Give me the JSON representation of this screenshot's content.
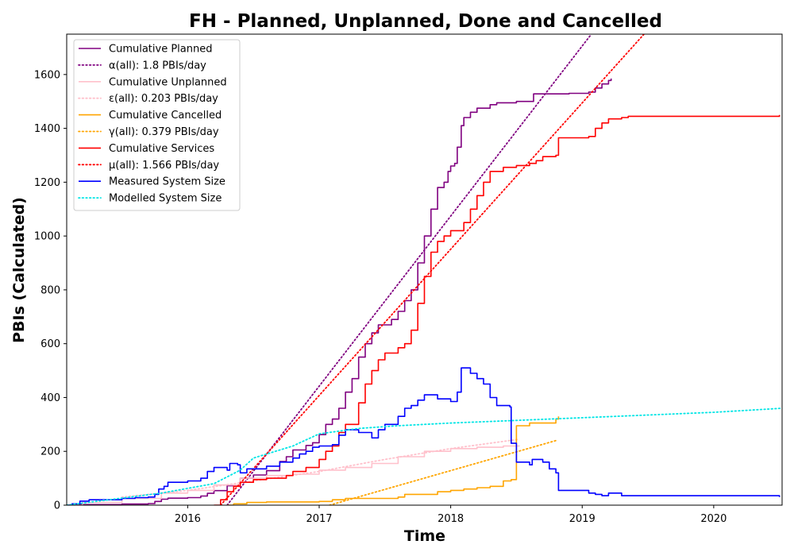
{
  "chart_data": {
    "type": "line",
    "title": "FH - Planned, Unplanned, Done  and Cancelled",
    "xlabel": "Time",
    "ylabel": "PBIs (Calculated)",
    "xlim": [
      2015.08,
      2020.52
    ],
    "ylim": [
      0,
      1750
    ],
    "xticks": [
      2016,
      2017,
      2018,
      2019,
      2020
    ],
    "yticks": [
      0,
      200,
      400,
      600,
      800,
      1000,
      1200,
      1400,
      1600
    ],
    "grid": false,
    "legend_position": "top-left",
    "series": [
      {
        "name": "Cumulative Planned",
        "color": "#800080",
        "style": "solid",
        "step": true,
        "points": [
          [
            2015.08,
            0
          ],
          [
            2015.18,
            2
          ],
          [
            2015.5,
            4
          ],
          [
            2015.7,
            6
          ],
          [
            2015.75,
            14
          ],
          [
            2015.8,
            22
          ],
          [
            2015.85,
            26
          ],
          [
            2016.0,
            28
          ],
          [
            2016.1,
            34
          ],
          [
            2016.15,
            44
          ],
          [
            2016.2,
            54
          ],
          [
            2016.3,
            72
          ],
          [
            2016.4,
            100
          ],
          [
            2016.5,
            112
          ],
          [
            2016.6,
            128
          ],
          [
            2016.7,
            162
          ],
          [
            2016.75,
            180
          ],
          [
            2016.8,
            205
          ],
          [
            2016.9,
            222
          ],
          [
            2016.95,
            232
          ],
          [
            2017.0,
            262
          ],
          [
            2017.05,
            300
          ],
          [
            2017.1,
            320
          ],
          [
            2017.15,
            360
          ],
          [
            2017.2,
            420
          ],
          [
            2017.25,
            470
          ],
          [
            2017.3,
            550
          ],
          [
            2017.35,
            600
          ],
          [
            2017.4,
            640
          ],
          [
            2017.45,
            670
          ],
          [
            2017.55,
            690
          ],
          [
            2017.6,
            720
          ],
          [
            2017.65,
            760
          ],
          [
            2017.7,
            800
          ],
          [
            2017.75,
            900
          ],
          [
            2017.8,
            1000
          ],
          [
            2017.85,
            1100
          ],
          [
            2017.9,
            1180
          ],
          [
            2017.95,
            1200
          ],
          [
            2017.98,
            1240
          ],
          [
            2018.0,
            1260
          ],
          [
            2018.03,
            1270
          ],
          [
            2018.05,
            1330
          ],
          [
            2018.08,
            1410
          ],
          [
            2018.1,
            1440
          ],
          [
            2018.15,
            1460
          ],
          [
            2018.2,
            1475
          ],
          [
            2018.3,
            1488
          ],
          [
            2018.35,
            1495
          ],
          [
            2018.5,
            1500
          ],
          [
            2018.62,
            1500
          ],
          [
            2018.63,
            1528
          ],
          [
            2018.9,
            1530
          ],
          [
            2019.05,
            1535
          ],
          [
            2019.1,
            1550
          ],
          [
            2019.15,
            1565
          ],
          [
            2019.2,
            1578
          ],
          [
            2019.22,
            1585
          ]
        ]
      },
      {
        "name": "α(all): 1.8 PBIs/day",
        "color": "#800080",
        "style": "dotted",
        "step": false,
        "points": [
          [
            2016.3,
            0
          ],
          [
            2019.07,
            1750
          ]
        ]
      },
      {
        "name": "Cumulative Unplanned",
        "color": "#ffc0cb",
        "style": "solid",
        "step": true,
        "points": [
          [
            2015.08,
            0
          ],
          [
            2015.2,
            10
          ],
          [
            2015.5,
            25
          ],
          [
            2015.8,
            45
          ],
          [
            2016.0,
            55
          ],
          [
            2016.2,
            75
          ],
          [
            2016.4,
            100
          ],
          [
            2016.6,
            110
          ],
          [
            2016.8,
            115
          ],
          [
            2017.0,
            130
          ],
          [
            2017.2,
            140
          ],
          [
            2017.4,
            155
          ],
          [
            2017.6,
            180
          ],
          [
            2017.8,
            200
          ],
          [
            2018.0,
            210
          ],
          [
            2018.2,
            215
          ],
          [
            2018.4,
            220
          ],
          [
            2018.52,
            222
          ]
        ]
      },
      {
        "name": "ε(all): 0.203 PBIs/day",
        "color": "#ffc0cb",
        "style": "dotted",
        "step": false,
        "points": [
          [
            2015.5,
            30
          ],
          [
            2016.0,
            55
          ],
          [
            2016.5,
            90
          ],
          [
            2017.0,
            125
          ],
          [
            2017.5,
            170
          ],
          [
            2018.0,
            210
          ],
          [
            2018.52,
            245
          ]
        ]
      },
      {
        "name": "Cumulative Cancelled",
        "color": "#ffa500",
        "style": "solid",
        "step": true,
        "points": [
          [
            2016.3,
            0
          ],
          [
            2016.35,
            5
          ],
          [
            2016.45,
            10
          ],
          [
            2016.6,
            12
          ],
          [
            2017.0,
            14
          ],
          [
            2017.1,
            20
          ],
          [
            2017.2,
            25
          ],
          [
            2017.6,
            30
          ],
          [
            2017.65,
            40
          ],
          [
            2017.9,
            50
          ],
          [
            2018.0,
            55
          ],
          [
            2018.1,
            60
          ],
          [
            2018.2,
            65
          ],
          [
            2018.3,
            70
          ],
          [
            2018.4,
            90
          ],
          [
            2018.46,
            95
          ],
          [
            2018.5,
            295
          ],
          [
            2018.6,
            305
          ],
          [
            2018.8,
            320
          ],
          [
            2018.82,
            330
          ]
        ]
      },
      {
        "name": "γ(all): 0.379 PBIs/day",
        "color": "#ffa500",
        "style": "dotted",
        "step": false,
        "points": [
          [
            2017.08,
            0
          ],
          [
            2018.8,
            240
          ]
        ]
      },
      {
        "name": "Cumulative Services",
        "color": "#ff0000",
        "style": "solid",
        "step": true,
        "points": [
          [
            2016.2,
            0
          ],
          [
            2016.25,
            20
          ],
          [
            2016.3,
            50
          ],
          [
            2016.35,
            70
          ],
          [
            2016.4,
            85
          ],
          [
            2016.5,
            95
          ],
          [
            2016.6,
            100
          ],
          [
            2016.75,
            110
          ],
          [
            2016.8,
            125
          ],
          [
            2016.9,
            140
          ],
          [
            2017.0,
            170
          ],
          [
            2017.05,
            200
          ],
          [
            2017.1,
            220
          ],
          [
            2017.15,
            270
          ],
          [
            2017.2,
            300
          ],
          [
            2017.3,
            380
          ],
          [
            2017.35,
            450
          ],
          [
            2017.4,
            500
          ],
          [
            2017.45,
            540
          ],
          [
            2017.5,
            565
          ],
          [
            2017.6,
            585
          ],
          [
            2017.65,
            600
          ],
          [
            2017.7,
            650
          ],
          [
            2017.75,
            750
          ],
          [
            2017.8,
            850
          ],
          [
            2017.85,
            940
          ],
          [
            2017.9,
            980
          ],
          [
            2017.95,
            1000
          ],
          [
            2018.0,
            1020
          ],
          [
            2018.1,
            1050
          ],
          [
            2018.15,
            1100
          ],
          [
            2018.2,
            1150
          ],
          [
            2018.25,
            1200
          ],
          [
            2018.3,
            1240
          ],
          [
            2018.4,
            1255
          ],
          [
            2018.5,
            1262
          ],
          [
            2018.6,
            1270
          ],
          [
            2018.65,
            1280
          ],
          [
            2018.7,
            1295
          ],
          [
            2018.8,
            1300
          ],
          [
            2018.82,
            1365
          ],
          [
            2019.05,
            1370
          ],
          [
            2019.1,
            1400
          ],
          [
            2019.15,
            1420
          ],
          [
            2019.2,
            1435
          ],
          [
            2019.3,
            1440
          ],
          [
            2019.35,
            1445
          ],
          [
            2020.5,
            1450
          ]
        ]
      },
      {
        "name": "μ(all): 1.566 PBIs/day",
        "color": "#ff0000",
        "style": "dotted",
        "step": false,
        "points": [
          [
            2016.25,
            0
          ],
          [
            2019.47,
            1750
          ]
        ]
      },
      {
        "name": "Measured System Size",
        "color": "#0000ff",
        "style": "solid",
        "step": true,
        "points": [
          [
            2015.08,
            0
          ],
          [
            2015.12,
            5
          ],
          [
            2015.18,
            15
          ],
          [
            2015.25,
            20
          ],
          [
            2015.5,
            25
          ],
          [
            2015.6,
            28
          ],
          [
            2015.7,
            30
          ],
          [
            2015.75,
            40
          ],
          [
            2015.78,
            60
          ],
          [
            2015.82,
            70
          ],
          [
            2015.85,
            85
          ],
          [
            2016.0,
            90
          ],
          [
            2016.1,
            100
          ],
          [
            2016.15,
            125
          ],
          [
            2016.2,
            140
          ],
          [
            2016.3,
            130
          ],
          [
            2016.32,
            155
          ],
          [
            2016.38,
            150
          ],
          [
            2016.4,
            120
          ],
          [
            2016.45,
            135
          ],
          [
            2016.6,
            145
          ],
          [
            2016.7,
            160
          ],
          [
            2016.8,
            175
          ],
          [
            2016.85,
            190
          ],
          [
            2016.9,
            200
          ],
          [
            2016.95,
            215
          ],
          [
            2017.0,
            220
          ],
          [
            2017.1,
            225
          ],
          [
            2017.15,
            260
          ],
          [
            2017.2,
            280
          ],
          [
            2017.3,
            270
          ],
          [
            2017.4,
            250
          ],
          [
            2017.45,
            280
          ],
          [
            2017.5,
            300
          ],
          [
            2017.6,
            330
          ],
          [
            2017.65,
            360
          ],
          [
            2017.7,
            370
          ],
          [
            2017.75,
            390
          ],
          [
            2017.8,
            410
          ],
          [
            2017.9,
            395
          ],
          [
            2018.0,
            385
          ],
          [
            2018.05,
            420
          ],
          [
            2018.08,
            510
          ],
          [
            2018.15,
            490
          ],
          [
            2018.2,
            470
          ],
          [
            2018.25,
            450
          ],
          [
            2018.3,
            400
          ],
          [
            2018.35,
            370
          ],
          [
            2018.45,
            365
          ],
          [
            2018.46,
            230
          ],
          [
            2018.5,
            160
          ],
          [
            2018.6,
            150
          ],
          [
            2018.62,
            170
          ],
          [
            2018.7,
            160
          ],
          [
            2018.75,
            135
          ],
          [
            2018.8,
            120
          ],
          [
            2018.82,
            55
          ],
          [
            2019.05,
            45
          ],
          [
            2019.1,
            40
          ],
          [
            2019.15,
            35
          ],
          [
            2019.2,
            45
          ],
          [
            2019.3,
            35
          ],
          [
            2020.5,
            30
          ]
        ]
      },
      {
        "name": "Modelled System Size",
        "color": "#00e5e5",
        "style": "dotted",
        "step": false,
        "points": [
          [
            2015.08,
            0
          ],
          [
            2015.4,
            20
          ],
          [
            2015.8,
            45
          ],
          [
            2016.2,
            80
          ],
          [
            2016.4,
            130
          ],
          [
            2016.5,
            175
          ],
          [
            2016.8,
            220
          ],
          [
            2017.0,
            265
          ],
          [
            2017.3,
            285
          ],
          [
            2017.6,
            295
          ],
          [
            2018.0,
            305
          ],
          [
            2018.5,
            315
          ],
          [
            2019.0,
            325
          ],
          [
            2019.5,
            335
          ],
          [
            2020.0,
            345
          ],
          [
            2020.52,
            360
          ]
        ]
      }
    ]
  }
}
